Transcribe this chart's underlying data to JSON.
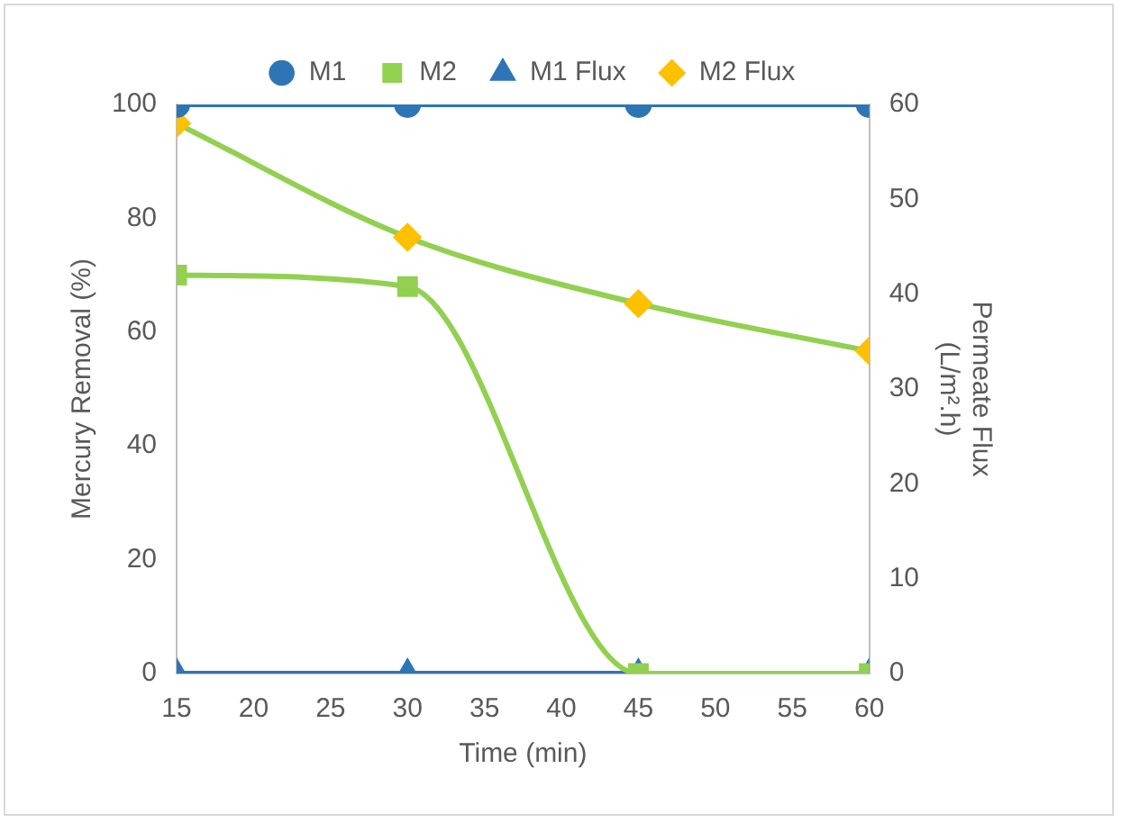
{
  "chart_data": {
    "type": "line",
    "xlabel": "Time (min)",
    "ylabel": "Mercury Removal (%)",
    "y2label": "Permeate Flux\n(L/m².h)",
    "x": [
      15,
      30,
      45,
      60
    ],
    "xlim": [
      15,
      60
    ],
    "xticks": [
      15,
      20,
      25,
      30,
      35,
      40,
      45,
      50,
      55,
      60
    ],
    "ylim": [
      0,
      100
    ],
    "yticks": [
      0,
      20,
      40,
      60,
      80,
      100
    ],
    "y2lim": [
      0,
      60
    ],
    "y2ticks": [
      0,
      10,
      20,
      30,
      40,
      50,
      60
    ],
    "legend": "top",
    "grid": false,
    "series": [
      {
        "name": "M1",
        "color": "#2e75b6",
        "marker": "circle",
        "values": [
          100,
          100,
          100,
          100
        ]
      },
      {
        "name": "M2",
        "color": "#92d050",
        "marker": "square",
        "values": [
          70,
          68,
          0,
          0
        ]
      },
      {
        "name": "M1 Flux",
        "color": "#2e75b6",
        "marker": "triangle",
        "axis": "y2",
        "values": [
          0,
          0,
          0,
          0
        ]
      },
      {
        "name": "M2 Flux",
        "color": "#92d050",
        "colors": [
          "#ffc000",
          "#ffc000",
          "#ffc000",
          "#ffc000"
        ],
        "marker": "diamond",
        "axis": "y2",
        "values": [
          58,
          46,
          39,
          34
        ]
      }
    ]
  }
}
